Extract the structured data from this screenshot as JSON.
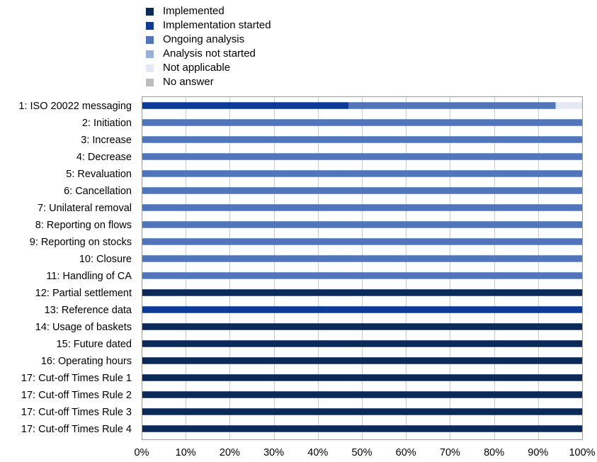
{
  "chart_data": {
    "type": "bar",
    "orientation": "horizontal",
    "stacked": true,
    "title": "",
    "xlabel": "",
    "ylabel": "",
    "xlim": [
      0,
      100
    ],
    "x_ticks": [
      "0%",
      "10%",
      "20%",
      "30%",
      "40%",
      "50%",
      "60%",
      "70%",
      "80%",
      "90%",
      "100%"
    ],
    "grid": "vertical",
    "legend_position": "top-left",
    "categories": [
      "1: ISO 20022 messaging",
      "2: Initiation",
      "3: Increase",
      "4: Decrease",
      "5: Revaluation",
      "6: Cancellation",
      "7: Unilateral removal",
      "8: Reporting on flows",
      "9: Reporting on stocks",
      "10: Closure",
      "11: Handling of CA",
      "12: Partial settlement",
      "13: Reference data",
      "14: Usage of baskets",
      "15: Future dated",
      "16: Operating hours",
      "17: Cut-off Times Rule 1",
      "17: Cut-off Times Rule 2",
      "17: Cut-off Times Rule 3",
      "17: Cut-off Times Rule 4"
    ],
    "series": [
      {
        "name": "Implemented",
        "color": "#0b2a5c",
        "values": [
          0,
          0,
          0,
          0,
          0,
          0,
          0,
          0,
          0,
          0,
          0,
          100,
          0,
          100,
          100,
          100,
          100,
          100,
          100,
          100
        ]
      },
      {
        "name": "Implementation started",
        "color": "#0a3a9a",
        "values": [
          47,
          0,
          0,
          0,
          0,
          0,
          0,
          0,
          0,
          0,
          0,
          0,
          100,
          0,
          0,
          0,
          0,
          0,
          0,
          0
        ]
      },
      {
        "name": "Ongoing analysis",
        "color": "#4f76bd",
        "values": [
          47,
          100,
          100,
          100,
          100,
          100,
          100,
          100,
          100,
          100,
          100,
          0,
          0,
          0,
          0,
          0,
          0,
          0,
          0,
          0
        ]
      },
      {
        "name": "Analysis not started",
        "color": "#98b0da",
        "values": [
          0,
          0,
          0,
          0,
          0,
          0,
          0,
          0,
          0,
          0,
          0,
          0,
          0,
          0,
          0,
          0,
          0,
          0,
          0,
          0
        ]
      },
      {
        "name": "Not applicable",
        "color": "#e4eaf3",
        "values": [
          6,
          0,
          0,
          0,
          0,
          0,
          0,
          0,
          0,
          0,
          0,
          0,
          0,
          0,
          0,
          0,
          0,
          0,
          0,
          0
        ]
      },
      {
        "name": "No answer",
        "color": "#bdbdbd",
        "values": [
          0,
          0,
          0,
          0,
          0,
          0,
          0,
          0,
          0,
          0,
          0,
          0,
          0,
          0,
          0,
          0,
          0,
          0,
          0,
          0
        ]
      }
    ]
  }
}
